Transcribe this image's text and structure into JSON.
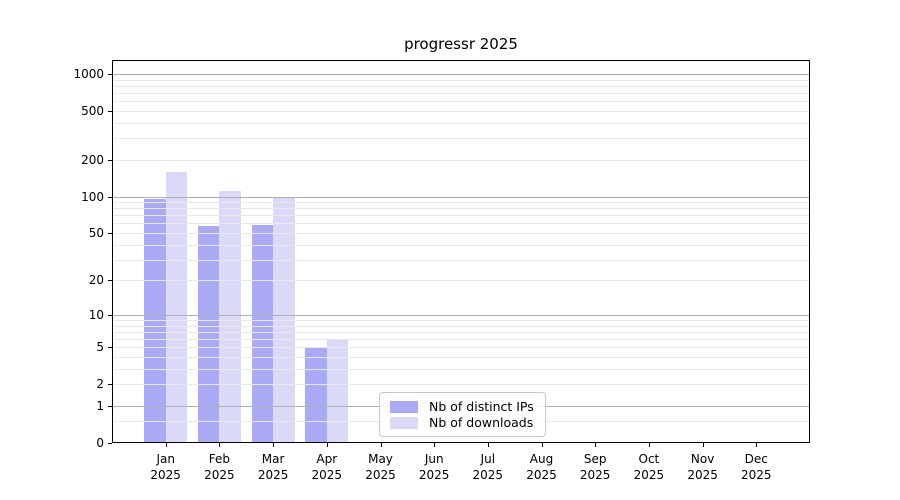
{
  "chart_data": {
    "type": "bar",
    "title": "progressr 2025",
    "x_year": "2025",
    "categories": [
      "Jan",
      "Feb",
      "Mar",
      "Apr",
      "May",
      "Jun",
      "Jul",
      "Aug",
      "Sep",
      "Oct",
      "Nov",
      "Dec"
    ],
    "series": [
      {
        "name": "Nb of distinct IPs",
        "color": "#a9a9f6",
        "values": [
          95,
          57,
          58,
          5,
          null,
          null,
          null,
          null,
          null,
          null,
          null,
          null
        ]
      },
      {
        "name": "Nb of downloads",
        "color": "#dadaf8",
        "values": [
          160,
          112,
          97,
          6,
          null,
          null,
          null,
          null,
          null,
          null,
          null,
          null
        ]
      }
    ],
    "yticks": [
      0,
      1,
      2,
      5,
      10,
      20,
      50,
      100,
      200,
      500,
      1000
    ],
    "ylim": [
      0,
      1300
    ],
    "scale": "log1p",
    "grid": true,
    "legend_position": "bottom-center"
  },
  "colors": {
    "background": "#ffffff",
    "grid_major": "#b0b0b0",
    "grid_minor": "#e8e8e8",
    "axis": "#000000",
    "text": "#000000"
  }
}
